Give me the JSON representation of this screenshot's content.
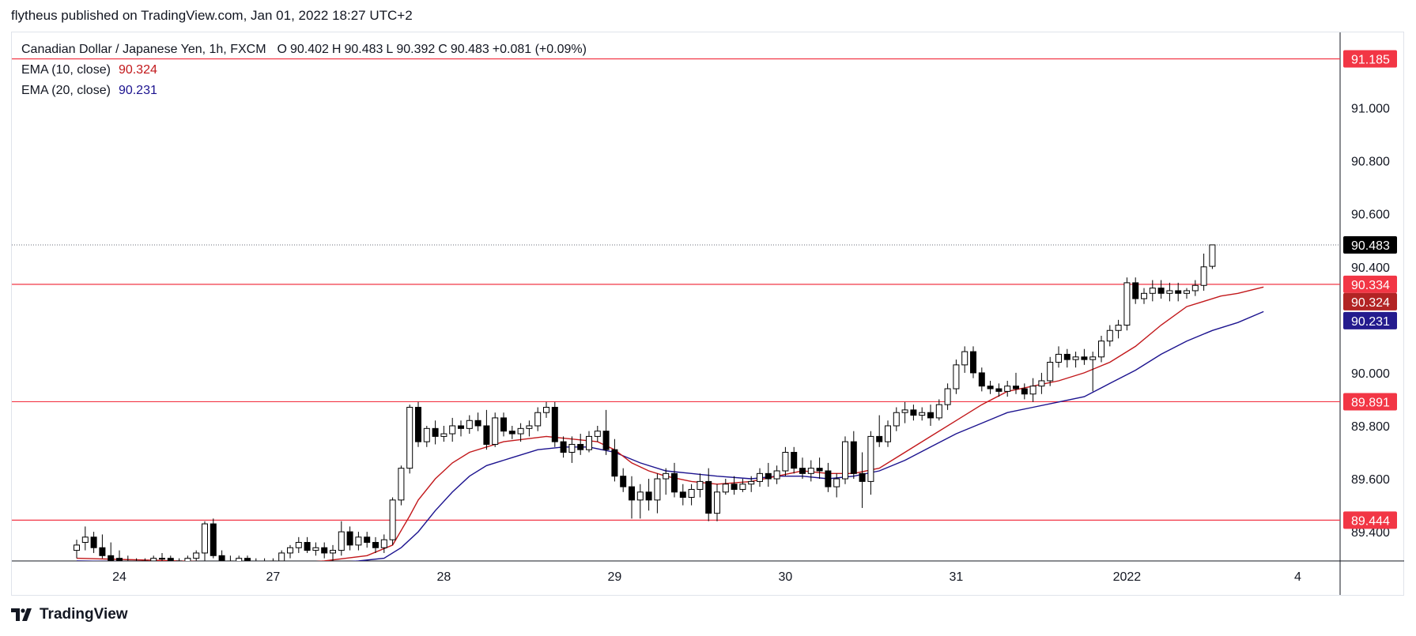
{
  "caption": "flytheus published on TradingView.com, Jan 01, 2022 18:27 UTC+2",
  "legend": {
    "symbol": "Canadian Dollar / Japanese Yen, 1h, FXCM",
    "o_label": "O",
    "o": "90.402",
    "h_label": "H",
    "h": "90.483",
    "l_label": "L",
    "l": "90.392",
    "c_label": "C",
    "c": "90.483",
    "change": "+0.081 (+0.09%)",
    "ema10_label": "EMA (10, close)",
    "ema10_value": "90.324",
    "ema20_label": "EMA (20, close)",
    "ema20_value": "90.231"
  },
  "brand": "TradingView",
  "colors": {
    "up_body": "#ffffff",
    "down_body": "#000000",
    "wick": "#000000",
    "ema10": "#c2181b",
    "ema20": "#1c138f",
    "hline": "#f23645",
    "last_price_tag": "#000000",
    "ema10_tag": "#b22424",
    "ema20_tag": "#241b8e"
  },
  "chart_data": {
    "type": "candlestick",
    "symbol": "CADJPY",
    "interval": "1h",
    "y_ticks": [
      "89.400",
      "89.600",
      "89.800",
      "90.000",
      "90.400",
      "90.600",
      "90.800",
      "91.000"
    ],
    "y_range": [
      89.29,
      91.285
    ],
    "x_ticks": [
      {
        "label": "24",
        "index": 5
      },
      {
        "label": "27",
        "index": 23
      },
      {
        "label": "28",
        "index": 43
      },
      {
        "label": "29",
        "index": 63
      },
      {
        "label": "30",
        "index": 83
      },
      {
        "label": "31",
        "index": 103
      },
      {
        "label": "2022",
        "index": 123
      },
      {
        "label": "4",
        "index": 143
      }
    ],
    "horizontal_lines": [
      {
        "value": 91.185,
        "label": "91.185"
      },
      {
        "value": 90.334,
        "label": "90.334"
      },
      {
        "value": 89.891,
        "label": "89.891"
      },
      {
        "value": 89.444,
        "label": "89.444"
      }
    ],
    "last_price": {
      "value": 90.483,
      "label": "90.483"
    },
    "ema10_last": {
      "value": 90.324,
      "label": "90.324"
    },
    "ema20_last": {
      "value": 90.231,
      "label": "90.231"
    },
    "candles": [
      [
        89.33,
        89.37,
        89.3,
        89.35
      ],
      [
        89.36,
        89.42,
        89.33,
        89.38
      ],
      [
        89.38,
        89.4,
        89.32,
        89.34
      ],
      [
        89.34,
        89.39,
        89.3,
        89.31
      ],
      [
        89.31,
        89.36,
        89.28,
        89.29
      ],
      [
        89.3,
        89.33,
        89.27,
        89.29
      ],
      [
        89.29,
        89.31,
        89.26,
        89.27
      ],
      [
        89.28,
        89.3,
        89.25,
        89.28
      ],
      [
        89.28,
        89.3,
        89.26,
        89.29
      ],
      [
        89.29,
        89.31,
        89.27,
        89.3
      ],
      [
        89.3,
        89.32,
        89.28,
        89.3
      ],
      [
        89.3,
        89.31,
        89.28,
        89.29
      ],
      [
        89.29,
        89.3,
        89.27,
        89.28
      ],
      [
        89.28,
        89.31,
        89.27,
        89.3
      ],
      [
        89.3,
        89.33,
        89.28,
        89.32
      ],
      [
        89.32,
        89.44,
        89.29,
        89.43
      ],
      [
        89.43,
        89.45,
        89.3,
        89.31
      ],
      [
        89.31,
        89.33,
        89.27,
        89.29
      ],
      [
        89.29,
        89.31,
        89.26,
        89.27
      ],
      [
        89.27,
        89.31,
        89.26,
        89.3
      ],
      [
        89.3,
        89.31,
        89.26,
        89.27
      ],
      [
        89.27,
        89.3,
        89.26,
        89.28
      ],
      [
        89.28,
        89.3,
        89.26,
        89.28
      ],
      [
        89.28,
        89.3,
        89.26,
        89.29
      ],
      [
        89.29,
        89.33,
        89.27,
        89.32
      ],
      [
        89.32,
        89.35,
        89.3,
        89.34
      ],
      [
        89.34,
        89.38,
        89.32,
        89.36
      ],
      [
        89.36,
        89.38,
        89.32,
        89.33
      ],
      [
        89.33,
        89.36,
        89.31,
        89.34
      ],
      [
        89.34,
        89.36,
        89.3,
        89.32
      ],
      [
        89.32,
        89.35,
        89.29,
        89.33
      ],
      [
        89.33,
        89.44,
        89.31,
        89.4
      ],
      [
        89.4,
        89.42,
        89.33,
        89.35
      ],
      [
        89.35,
        89.4,
        89.33,
        89.38
      ],
      [
        89.38,
        89.4,
        89.34,
        89.36
      ],
      [
        89.36,
        89.38,
        89.32,
        89.34
      ],
      [
        89.34,
        89.39,
        89.32,
        89.37
      ],
      [
        89.37,
        89.53,
        89.35,
        89.52
      ],
      [
        89.52,
        89.65,
        89.5,
        89.64
      ],
      [
        89.64,
        89.88,
        89.62,
        89.87
      ],
      [
        89.87,
        89.89,
        89.72,
        89.74
      ],
      [
        89.74,
        89.8,
        89.72,
        89.79
      ],
      [
        89.79,
        89.82,
        89.73,
        89.76
      ],
      [
        89.76,
        89.8,
        89.74,
        89.77
      ],
      [
        89.77,
        89.83,
        89.74,
        89.8
      ],
      [
        89.8,
        89.82,
        89.76,
        89.79
      ],
      [
        89.79,
        89.84,
        89.77,
        89.82
      ],
      [
        89.82,
        89.85,
        89.78,
        89.8
      ],
      [
        89.8,
        89.86,
        89.71,
        89.73
      ],
      [
        89.73,
        89.85,
        89.72,
        89.83
      ],
      [
        89.83,
        89.85,
        89.76,
        89.78
      ],
      [
        89.78,
        89.8,
        89.75,
        89.77
      ],
      [
        89.77,
        89.81,
        89.74,
        89.79
      ],
      [
        89.79,
        89.82,
        89.76,
        89.8
      ],
      [
        89.8,
        89.87,
        89.78,
        89.85
      ],
      [
        89.85,
        89.89,
        89.83,
        89.87
      ],
      [
        89.87,
        89.89,
        89.72,
        89.74
      ],
      [
        89.74,
        89.76,
        89.68,
        89.7
      ],
      [
        89.7,
        89.76,
        89.66,
        89.73
      ],
      [
        89.73,
        89.77,
        89.69,
        89.71
      ],
      [
        89.71,
        89.78,
        89.7,
        89.76
      ],
      [
        89.76,
        89.8,
        89.74,
        89.78
      ],
      [
        89.78,
        89.86,
        89.69,
        89.71
      ],
      [
        89.71,
        89.75,
        89.59,
        89.61
      ],
      [
        89.61,
        89.64,
        89.55,
        89.57
      ],
      [
        89.57,
        89.61,
        89.45,
        89.52
      ],
      [
        89.52,
        89.58,
        89.45,
        89.55
      ],
      [
        89.55,
        89.6,
        89.48,
        89.52
      ],
      [
        89.52,
        89.62,
        89.47,
        89.6
      ],
      [
        89.6,
        89.64,
        89.54,
        89.62
      ],
      [
        89.62,
        89.66,
        89.53,
        89.55
      ],
      [
        89.55,
        89.58,
        89.5,
        89.53
      ],
      [
        89.53,
        89.58,
        89.5,
        89.56
      ],
      [
        89.56,
        89.62,
        89.53,
        89.59
      ],
      [
        89.59,
        89.64,
        89.44,
        89.47
      ],
      [
        89.47,
        89.58,
        89.44,
        89.55
      ],
      [
        89.55,
        89.6,
        89.54,
        89.58
      ],
      [
        89.58,
        89.61,
        89.54,
        89.56
      ],
      [
        89.56,
        89.6,
        89.55,
        89.58
      ],
      [
        89.58,
        89.61,
        89.55,
        89.59
      ],
      [
        89.59,
        89.64,
        89.57,
        89.62
      ],
      [
        89.62,
        89.66,
        89.57,
        89.6
      ],
      [
        89.6,
        89.65,
        89.58,
        89.63
      ],
      [
        89.63,
        89.72,
        89.61,
        89.7
      ],
      [
        89.7,
        89.72,
        89.62,
        89.64
      ],
      [
        89.64,
        89.68,
        89.6,
        89.62
      ],
      [
        89.62,
        89.67,
        89.59,
        89.64
      ],
      [
        89.64,
        89.68,
        89.6,
        89.63
      ],
      [
        89.63,
        89.66,
        89.55,
        89.57
      ],
      [
        89.57,
        89.62,
        89.53,
        89.6
      ],
      [
        89.6,
        89.76,
        89.58,
        89.74
      ],
      [
        89.74,
        89.78,
        89.6,
        89.62
      ],
      [
        89.62,
        89.7,
        89.49,
        89.59
      ],
      [
        89.59,
        89.78,
        89.54,
        89.76
      ],
      [
        89.76,
        89.84,
        89.72,
        89.74
      ],
      [
        89.74,
        89.82,
        89.72,
        89.8
      ],
      [
        89.8,
        89.87,
        89.78,
        89.85
      ],
      [
        89.85,
        89.89,
        89.81,
        89.86
      ],
      [
        89.86,
        89.88,
        89.82,
        89.84
      ],
      [
        89.84,
        89.87,
        89.82,
        89.85
      ],
      [
        89.85,
        89.88,
        89.8,
        89.83
      ],
      [
        89.83,
        89.9,
        89.82,
        89.88
      ],
      [
        89.88,
        89.96,
        89.86,
        89.94
      ],
      [
        89.94,
        90.05,
        89.92,
        90.03
      ],
      [
        90.03,
        90.1,
        90.0,
        90.08
      ],
      [
        90.08,
        90.1,
        89.98,
        90.0
      ],
      [
        90.0,
        90.02,
        89.93,
        89.95
      ],
      [
        89.95,
        89.97,
        89.92,
        89.94
      ],
      [
        89.94,
        89.96,
        89.91,
        89.93
      ],
      [
        89.93,
        89.97,
        89.91,
        89.95
      ],
      [
        89.95,
        90.0,
        89.92,
        89.94
      ],
      [
        89.94,
        89.96,
        89.9,
        89.92
      ],
      [
        89.92,
        89.98,
        89.89,
        89.95
      ],
      [
        89.95,
        90.0,
        89.92,
        89.97
      ],
      [
        89.97,
        90.06,
        89.95,
        90.04
      ],
      [
        90.04,
        90.1,
        90.02,
        90.07
      ],
      [
        90.07,
        90.09,
        90.02,
        90.05
      ],
      [
        90.05,
        90.08,
        90.02,
        90.06
      ],
      [
        90.06,
        90.09,
        90.03,
        90.05
      ],
      [
        90.05,
        90.08,
        89.93,
        90.06
      ],
      [
        90.06,
        90.14,
        90.04,
        90.12
      ],
      [
        90.12,
        90.18,
        90.1,
        90.16
      ],
      [
        90.16,
        90.2,
        90.13,
        90.18
      ],
      [
        90.18,
        90.36,
        90.16,
        90.34
      ],
      [
        90.34,
        90.36,
        90.26,
        90.28
      ],
      [
        90.28,
        90.32,
        90.26,
        90.3
      ],
      [
        90.3,
        90.35,
        90.27,
        90.32
      ],
      [
        90.32,
        90.35,
        90.28,
        90.3
      ],
      [
        90.3,
        90.34,
        90.27,
        90.31
      ],
      [
        90.31,
        90.34,
        90.27,
        90.3
      ],
      [
        90.3,
        90.32,
        90.28,
        90.31
      ],
      [
        90.31,
        90.35,
        90.29,
        90.33
      ],
      [
        90.33,
        90.45,
        90.31,
        90.4
      ],
      [
        90.402,
        90.483,
        90.392,
        90.483
      ]
    ],
    "ema10": [
      [
        0,
        89.3
      ],
      [
        24,
        89.28
      ],
      [
        29,
        89.29
      ],
      [
        34,
        89.31
      ],
      [
        37,
        89.35
      ],
      [
        39,
        89.46
      ],
      [
        40,
        89.52
      ],
      [
        42,
        89.6
      ],
      [
        44,
        89.66
      ],
      [
        46,
        89.7
      ],
      [
        50,
        89.74
      ],
      [
        55,
        89.76
      ],
      [
        58,
        89.75
      ],
      [
        61,
        89.74
      ],
      [
        63,
        89.71
      ],
      [
        65,
        89.66
      ],
      [
        67,
        89.63
      ],
      [
        69,
        89.61
      ],
      [
        72,
        89.59
      ],
      [
        75,
        89.58
      ],
      [
        79,
        89.59
      ],
      [
        82,
        89.61
      ],
      [
        85,
        89.63
      ],
      [
        88,
        89.62
      ],
      [
        91,
        89.62
      ],
      [
        94,
        89.64
      ],
      [
        97,
        89.7
      ],
      [
        100,
        89.76
      ],
      [
        103,
        89.82
      ],
      [
        106,
        89.88
      ],
      [
        109,
        89.93
      ],
      [
        112,
        89.95
      ],
      [
        115,
        89.97
      ],
      [
        118,
        90.0
      ],
      [
        121,
        90.04
      ],
      [
        124,
        90.1
      ],
      [
        127,
        90.18
      ],
      [
        130,
        90.25
      ],
      [
        132,
        90.27
      ],
      [
        134,
        90.29
      ],
      [
        136,
        90.3
      ],
      [
        139,
        90.324
      ]
    ],
    "ema20": [
      [
        0,
        89.29
      ],
      [
        28,
        89.28
      ],
      [
        33,
        89.29
      ],
      [
        36,
        89.3
      ],
      [
        38,
        89.34
      ],
      [
        40,
        89.4
      ],
      [
        42,
        89.48
      ],
      [
        44,
        89.55
      ],
      [
        46,
        89.61
      ],
      [
        48,
        89.65
      ],
      [
        51,
        89.68
      ],
      [
        54,
        89.71
      ],
      [
        57,
        89.72
      ],
      [
        60,
        89.72
      ],
      [
        63,
        89.7
      ],
      [
        66,
        89.66
      ],
      [
        69,
        89.63
      ],
      [
        72,
        89.62
      ],
      [
        75,
        89.61
      ],
      [
        79,
        89.6
      ],
      [
        82,
        89.61
      ],
      [
        85,
        89.61
      ],
      [
        88,
        89.6
      ],
      [
        91,
        89.61
      ],
      [
        94,
        89.63
      ],
      [
        97,
        89.67
      ],
      [
        100,
        89.72
      ],
      [
        103,
        89.77
      ],
      [
        106,
        89.81
      ],
      [
        109,
        89.85
      ],
      [
        112,
        89.87
      ],
      [
        115,
        89.89
      ],
      [
        118,
        89.91
      ],
      [
        121,
        89.96
      ],
      [
        124,
        90.01
      ],
      [
        127,
        90.07
      ],
      [
        130,
        90.12
      ],
      [
        133,
        90.16
      ],
      [
        136,
        90.19
      ],
      [
        139,
        90.231
      ]
    ]
  }
}
